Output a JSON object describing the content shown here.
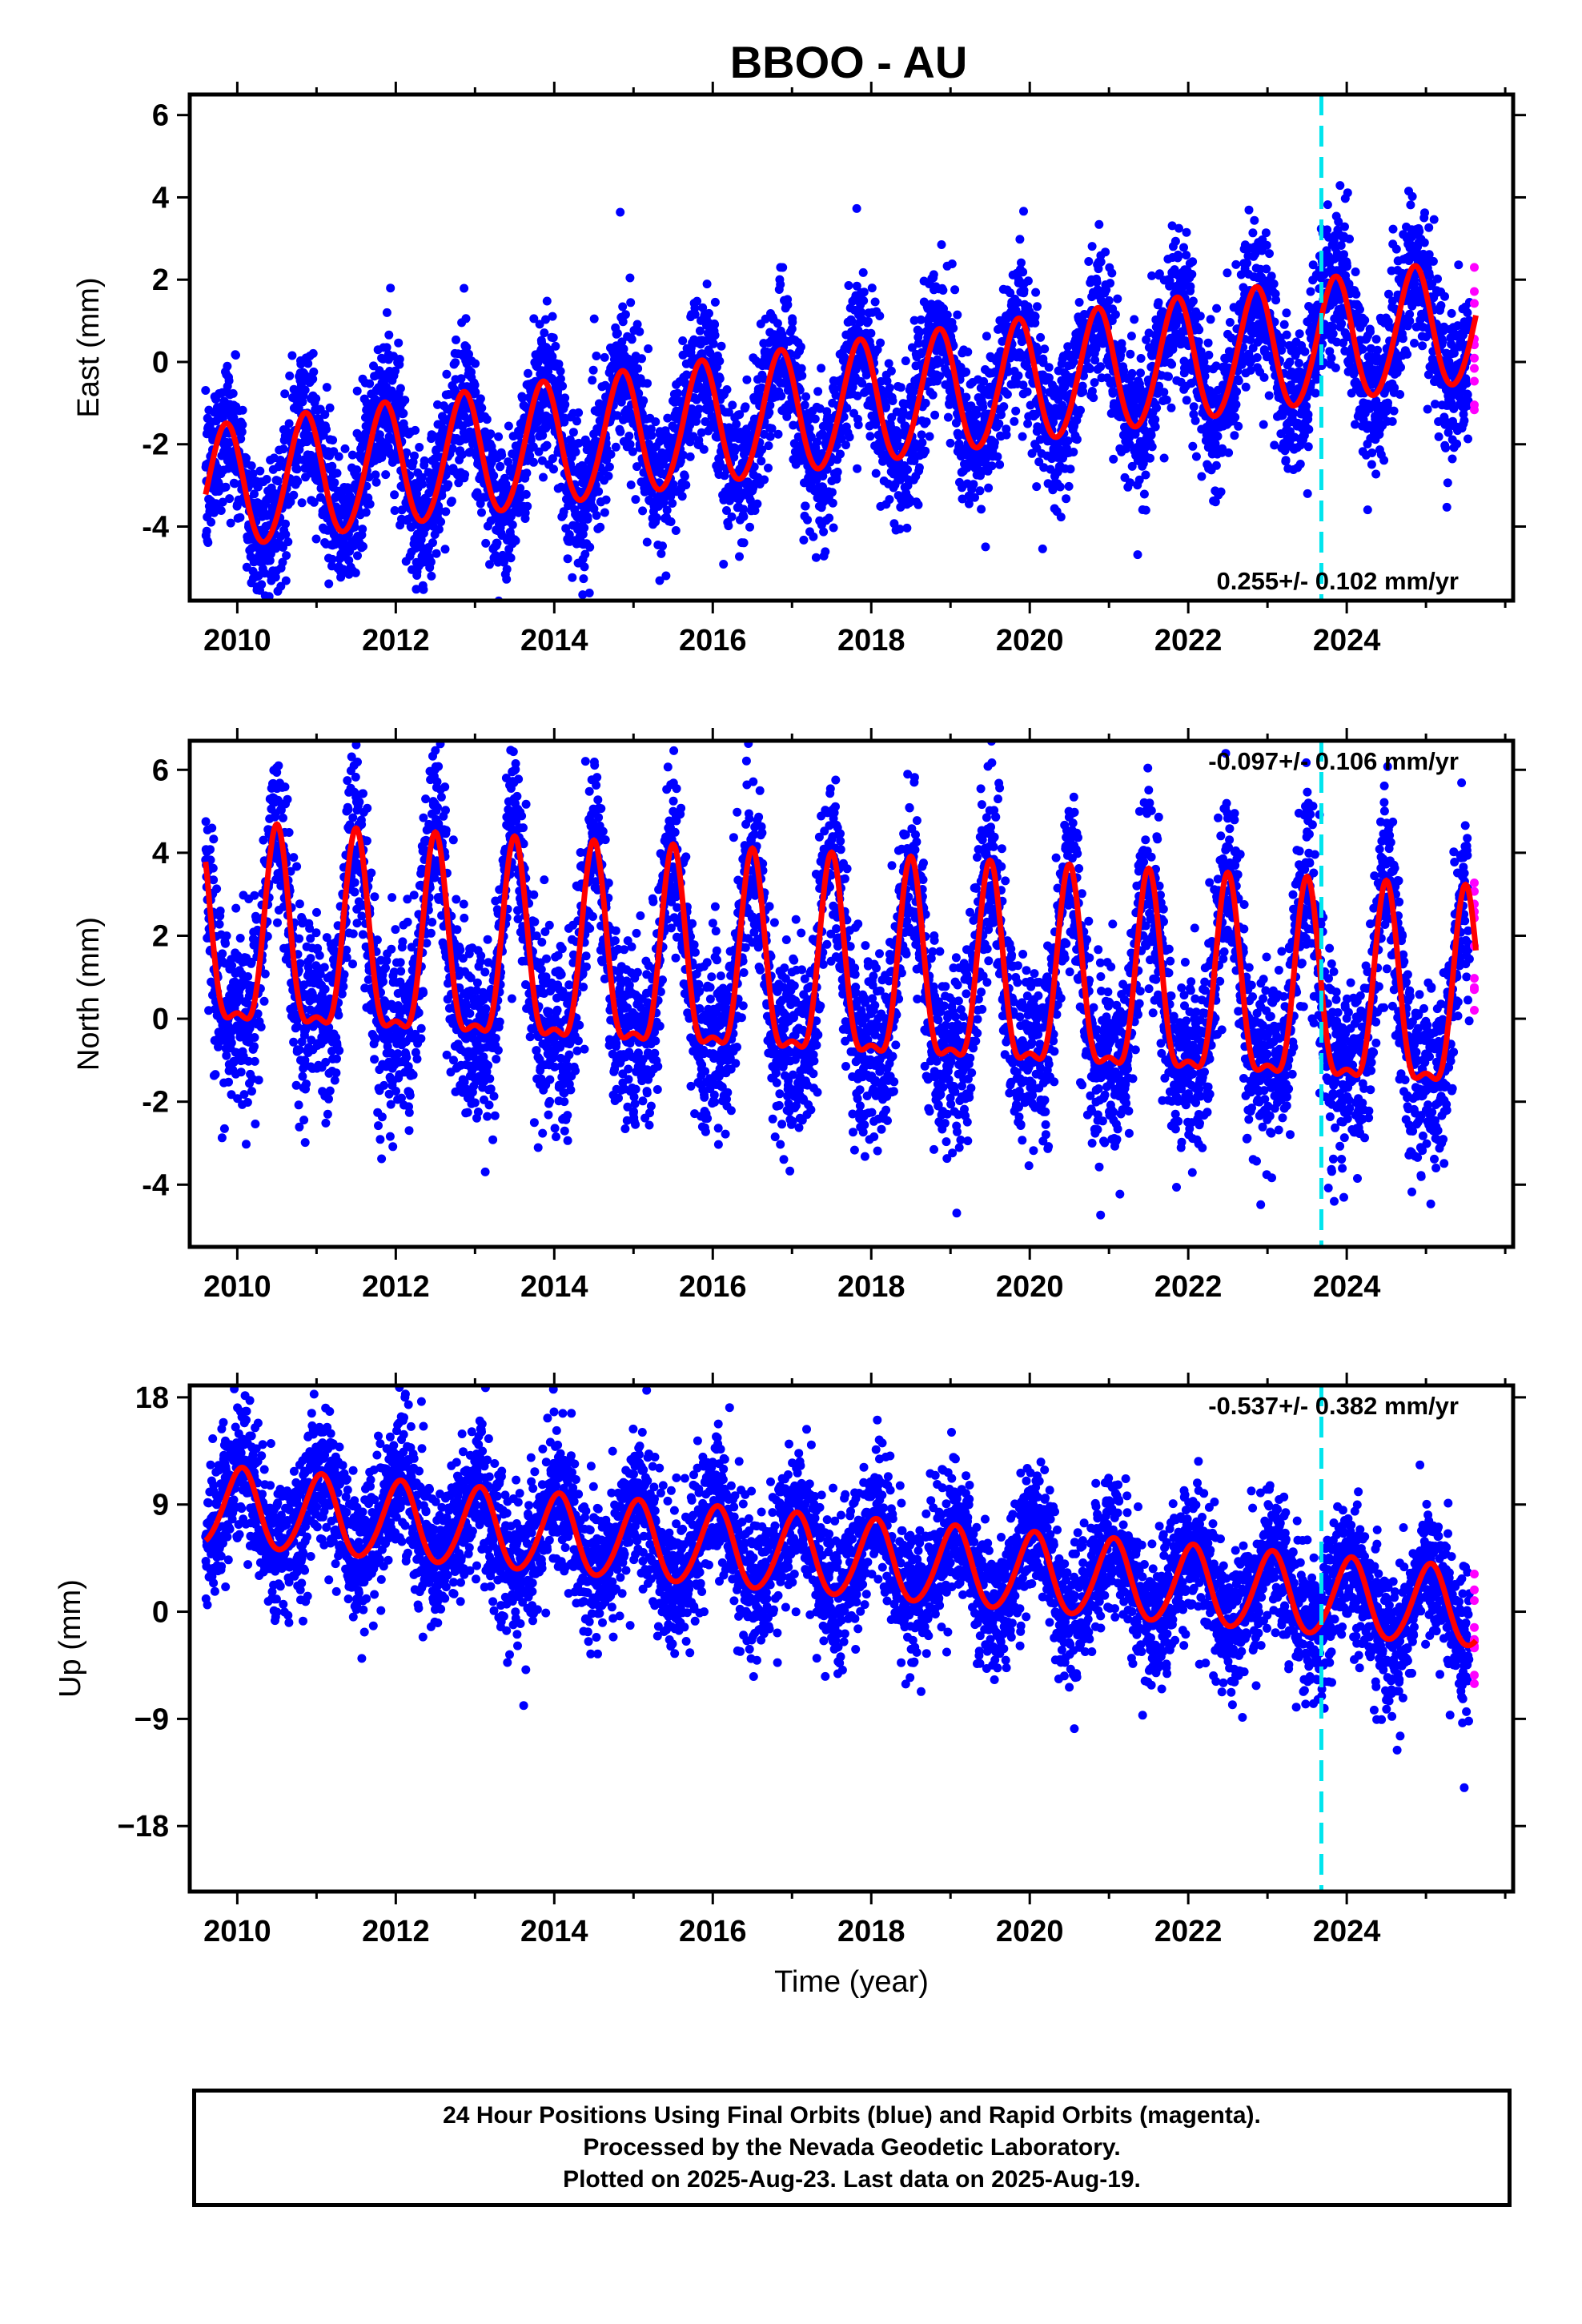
{
  "title": "BBOO - AU",
  "colors": {
    "final_orbits": "#0000ff",
    "rapid_orbits": "#ff00ff",
    "model": "#ff0000",
    "equipment_change": "#00e5ee"
  },
  "chart_data": [
    {
      "type": "scatter",
      "component": "east",
      "ylabel": "East (mm)",
      "xlim": [
        2009.4,
        2026.1
      ],
      "ylim": [
        -5.8,
        6.5
      ],
      "xticks": [
        2010,
        2012,
        2014,
        2016,
        2018,
        2020,
        2022,
        2024
      ],
      "yticks": [
        -4,
        -2,
        0,
        2,
        4,
        6
      ],
      "x_start": 2009.6,
      "x_end": 2025.63,
      "rapid_start": 2025.55,
      "equipment_change_x": 2023.68,
      "rate_label": "0.255+/- 0.102 mm/yr",
      "rate_position": "bottom-right",
      "model": {
        "intercept": -1.1,
        "slope": 0.255,
        "annual_amp": 1.5,
        "annual_peak": 0.85,
        "semiannual_amp": 0.1,
        "semiannual_peak": 0.9
      },
      "model_breaks": [
        {
          "x": 2023.68,
          "offset": 0
        }
      ],
      "scatter_sigma": 0.9
    },
    {
      "type": "scatter",
      "component": "north",
      "ylabel": "North (mm)",
      "xlim": [
        2009.4,
        2026.1
      ],
      "ylim": [
        -5.5,
        6.7
      ],
      "xticks": [
        2010,
        2012,
        2014,
        2016,
        2018,
        2020,
        2022,
        2024
      ],
      "yticks": [
        -4,
        -2,
        0,
        2,
        4,
        6
      ],
      "x_start": 2009.6,
      "x_end": 2025.63,
      "rapid_start": 2025.55,
      "equipment_change_x": 2023.68,
      "rate_label": "-0.097+/- 0.106 mm/yr",
      "rate_position": "top-right",
      "model": {
        "intercept": 0.9,
        "slope": -0.097,
        "annual_amp": 2.3,
        "annual_peak": 0.5,
        "semiannual_amp": 0.8,
        "semiannual_peak": 0.5
      },
      "model_breaks": [
        {
          "x": 2023.68,
          "offset": 0
        }
      ],
      "scatter_sigma": 1.1
    },
    {
      "type": "scatter",
      "component": "up",
      "ylabel": "Up (mm)",
      "xlim": [
        2009.4,
        2026.1
      ],
      "ylim": [
        -23.5,
        19
      ],
      "xticks": [
        2010,
        2012,
        2014,
        2016,
        2018,
        2020,
        2022,
        2024
      ],
      "yticks": [
        -18,
        -9,
        0,
        9,
        18
      ],
      "ytick_labels": [
        "−18",
        "−9",
        "0",
        "9",
        "18"
      ],
      "x_start": 2009.6,
      "x_end": 2025.63,
      "rapid_start": 2025.55,
      "equipment_change_x": 2023.68,
      "rate_label": "-0.537+/- 0.382 mm/yr",
      "rate_position": "top-right",
      "xlabel": "Time (year)",
      "model": {
        "intercept": 4.5,
        "slope": -0.537,
        "annual_amp": 3.3,
        "annual_peak": 0.05,
        "semiannual_amp": 0.3,
        "semiannual_peak": 0.1
      },
      "model_breaks": [
        {
          "x": 2023.68,
          "offset": 0
        }
      ],
      "scatter_sigma": 3.0
    }
  ],
  "footer": {
    "line1": "24 Hour Positions Using Final Orbits (blue) and Rapid Orbits (magenta).",
    "line2": "Processed by the Nevada Geodetic Laboratory.",
    "line3": "Plotted on 2025-Aug-23. Last data on 2025-Aug-19."
  }
}
